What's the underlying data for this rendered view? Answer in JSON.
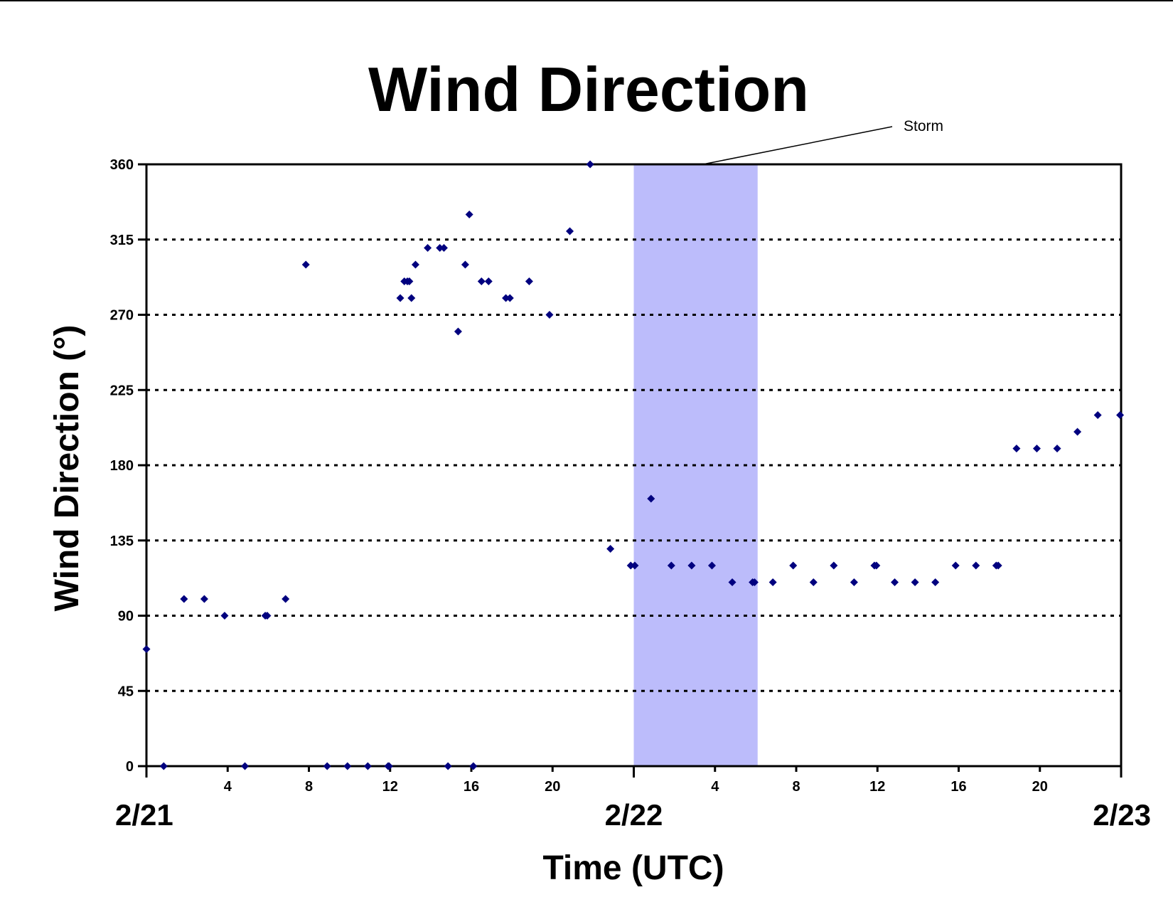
{
  "chart_data": {
    "type": "scatter",
    "title": "Wind Direction",
    "xlabel": "Time (UTC)",
    "ylabel": "Wind Direction (°)",
    "ylim": [
      0,
      360
    ],
    "yticks": [
      "0",
      "45",
      "90",
      "135",
      "180",
      "225",
      "270",
      "315",
      "360"
    ],
    "xlim_hours": [
      0,
      48
    ],
    "xtick_hours": [
      4,
      8,
      12,
      16,
      20,
      28,
      32,
      36,
      40,
      44
    ],
    "xtick_labels": [
      "4",
      "8",
      "12",
      "16",
      "20",
      "4",
      "8",
      "12",
      "16",
      "20"
    ],
    "date_labels": [
      {
        "hour": 0,
        "label": "2/21"
      },
      {
        "hour": 24,
        "label": "2/22"
      },
      {
        "hour": 48,
        "label": "2/23"
      }
    ],
    "grid": "horizontal dotted",
    "legend": "none",
    "colors": {
      "marker": "#00007f",
      "storm_band": "#bcbcfb",
      "axis": "#000000"
    },
    "annotation": {
      "text": "Storm",
      "start_hour": 24,
      "end_hour": 30.1
    },
    "series": [
      {
        "points": [
          [
            0,
            70
          ],
          [
            0.85,
            0
          ],
          [
            1.85,
            100
          ],
          [
            2.85,
            100
          ],
          [
            3.85,
            90
          ],
          [
            4.85,
            0
          ],
          [
            5.85,
            90
          ],
          [
            5.95,
            90
          ],
          [
            6.85,
            100
          ],
          [
            7.85,
            300
          ],
          [
            8.9,
            0
          ],
          [
            9.9,
            0
          ],
          [
            10.9,
            0
          ],
          [
            11.9,
            0
          ],
          [
            11.95,
            0
          ],
          [
            12.5,
            280
          ],
          [
            12.7,
            290
          ],
          [
            12.85,
            290
          ],
          [
            12.95,
            290
          ],
          [
            13.05,
            280
          ],
          [
            13.25,
            300
          ],
          [
            13.85,
            310
          ],
          [
            14.45,
            310
          ],
          [
            14.65,
            310
          ],
          [
            14.85,
            0
          ],
          [
            15.35,
            260
          ],
          [
            15.7,
            300
          ],
          [
            15.9,
            330
          ],
          [
            16.1,
            0
          ],
          [
            16.5,
            290
          ],
          [
            16.85,
            290
          ],
          [
            17.7,
            280
          ],
          [
            17.9,
            280
          ],
          [
            18.85,
            290
          ],
          [
            19.85,
            270
          ],
          [
            20.85,
            320
          ],
          [
            21.85,
            360
          ],
          [
            22.85,
            130
          ],
          [
            23.85,
            120
          ],
          [
            24.05,
            120
          ],
          [
            24.85,
            160
          ],
          [
            25.85,
            120
          ],
          [
            26.85,
            120
          ],
          [
            27.85,
            120
          ],
          [
            28.85,
            110
          ],
          [
            29.85,
            110
          ],
          [
            29.95,
            110
          ],
          [
            30.85,
            110
          ],
          [
            31.85,
            120
          ],
          [
            32.85,
            110
          ],
          [
            33.85,
            120
          ],
          [
            34.85,
            110
          ],
          [
            35.85,
            120
          ],
          [
            35.95,
            120
          ],
          [
            36.85,
            110
          ],
          [
            37.85,
            110
          ],
          [
            38.85,
            110
          ],
          [
            39.85,
            120
          ],
          [
            40.85,
            120
          ],
          [
            41.85,
            120
          ],
          [
            41.95,
            120
          ],
          [
            42.85,
            190
          ],
          [
            43.85,
            190
          ],
          [
            44.85,
            190
          ],
          [
            45.85,
            200
          ],
          [
            46.85,
            210
          ],
          [
            47.95,
            210
          ]
        ]
      }
    ]
  }
}
